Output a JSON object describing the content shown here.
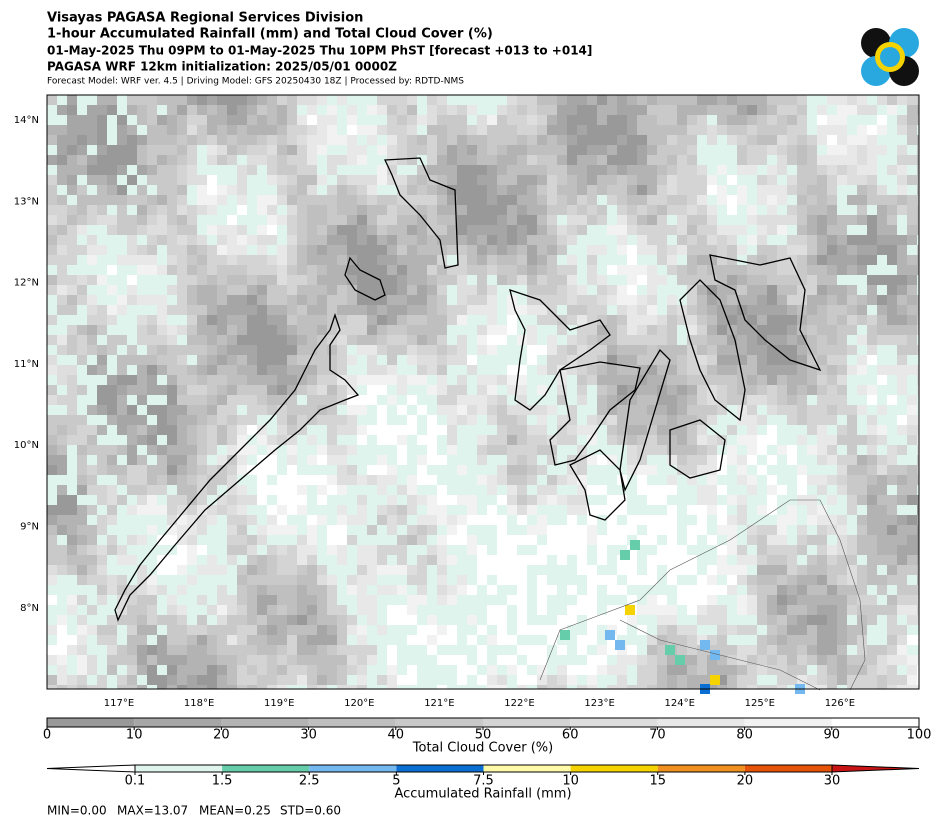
{
  "header": {
    "lines": [
      "Visayas PAGASA Regional Services Division",
      "1-hour Accumulated Rainfall (mm) and Total Cloud Cover (%)",
      "01-May-2025 Thu 09PM to 01-May-2025 Thu 10PM PhST [forecast +013 to +014]",
      "PAGASA WRF 12km initialization: 2025/05/01 0000Z"
    ],
    "note": "Forecast Model: WRF ver. 4.5 | Driving Model: GFS 20250430 18Z | Processed by: RDTD-NMS"
  },
  "map": {
    "lat_labels": [
      "14°N",
      "13°N",
      "12°N",
      "11°N",
      "10°N",
      "9°N",
      "8°N"
    ],
    "lon_labels": [
      "117°E",
      "118°E",
      "119°E",
      "120°E",
      "121°E",
      "122°E",
      "123°E",
      "124°E",
      "125°E",
      "126°E"
    ]
  },
  "cloud_colorbar": {
    "label": "Total Cloud Cover (%)",
    "ticks": [
      0,
      10,
      20,
      30,
      40,
      50,
      60,
      70,
      80,
      90,
      100
    ],
    "colors": [
      "#999999",
      "#a6a6a6",
      "#b3b3b3",
      "#bfbfbf",
      "#c9c9c9",
      "#d4d4d4",
      "#dedede",
      "#e8e8e8",
      "#f2f2f2",
      "#ffffff"
    ]
  },
  "rain_colorbar": {
    "label": "Accumulated Rainfall (mm)",
    "ticks": [
      0.1,
      1.5,
      2.5,
      5,
      7.5,
      10,
      15,
      20,
      30
    ],
    "colors": [
      "#dff4ec",
      "#66cdaa",
      "#74b8f0",
      "#0a6ed2",
      "#fffaa8",
      "#f5d300",
      "#f0901e",
      "#e6540a"
    ],
    "under_color": "#ffffff",
    "over_color": "#c81414"
  },
  "stats": [
    "MIN=0.00",
    "MAX=13.07",
    "MEAN=0.25",
    "STD=0.60"
  ]
}
